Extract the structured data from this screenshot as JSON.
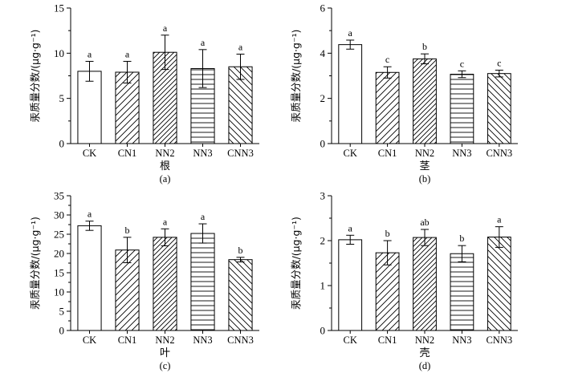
{
  "chart_data": [
    {
      "panel": "(a)",
      "type": "bar",
      "xlabel": "根",
      "ylabel": "汞质量分数/(μg·g⁻¹)",
      "categories": [
        "CK",
        "CN1",
        "NN2",
        "NN3",
        "CNN3"
      ],
      "values": [
        8.0,
        7.9,
        10.1,
        8.3,
        8.5
      ],
      "errors": [
        1.1,
        1.2,
        1.9,
        2.1,
        1.4
      ],
      "letters": [
        "a",
        "a",
        "a",
        "a",
        "a"
      ],
      "ylim": [
        0,
        15
      ],
      "yticks": [
        0,
        5,
        10,
        15
      ]
    },
    {
      "panel": "(b)",
      "type": "bar",
      "xlabel": "茎",
      "ylabel": "汞质量分数/(μg·g⁻¹)",
      "categories": [
        "CK",
        "CN1",
        "NN2",
        "NN3",
        "CNN3"
      ],
      "values": [
        4.38,
        3.15,
        3.75,
        3.07,
        3.1
      ],
      "errors": [
        0.2,
        0.25,
        0.22,
        0.15,
        0.15
      ],
      "letters": [
        "a",
        "c",
        "b",
        "c",
        "c"
      ],
      "ylim": [
        0,
        6
      ],
      "yticks": [
        0,
        2,
        4,
        6
      ]
    },
    {
      "panel": "(c)",
      "type": "bar",
      "xlabel": "叶",
      "ylabel": "汞质量分数/(μg·g⁻¹)",
      "categories": [
        "CK",
        "CN1",
        "NN2",
        "NN3",
        "CNN3"
      ],
      "values": [
        27.2,
        20.9,
        24.2,
        25.2,
        18.4
      ],
      "errors": [
        1.2,
        3.3,
        2.2,
        2.5,
        0.6
      ],
      "letters": [
        "a",
        "b",
        "a",
        "a",
        "b"
      ],
      "ylim": [
        0,
        35
      ],
      "yticks": [
        0,
        5,
        10,
        15,
        20,
        25,
        30,
        35
      ]
    },
    {
      "panel": "(d)",
      "type": "bar",
      "xlabel": "壳",
      "ylabel": "汞质量分数/(μg·g⁻¹)",
      "categories": [
        "CK",
        "CN1",
        "NN2",
        "NN3",
        "CNN3"
      ],
      "values": [
        2.02,
        1.73,
        2.07,
        1.71,
        2.08
      ],
      "errors": [
        0.1,
        0.27,
        0.18,
        0.18,
        0.23
      ],
      "letters": [
        "a",
        "b",
        "ab",
        "b",
        "a"
      ],
      "ylim": [
        0,
        3
      ],
      "yticks": [
        0,
        1,
        2,
        3
      ]
    }
  ]
}
